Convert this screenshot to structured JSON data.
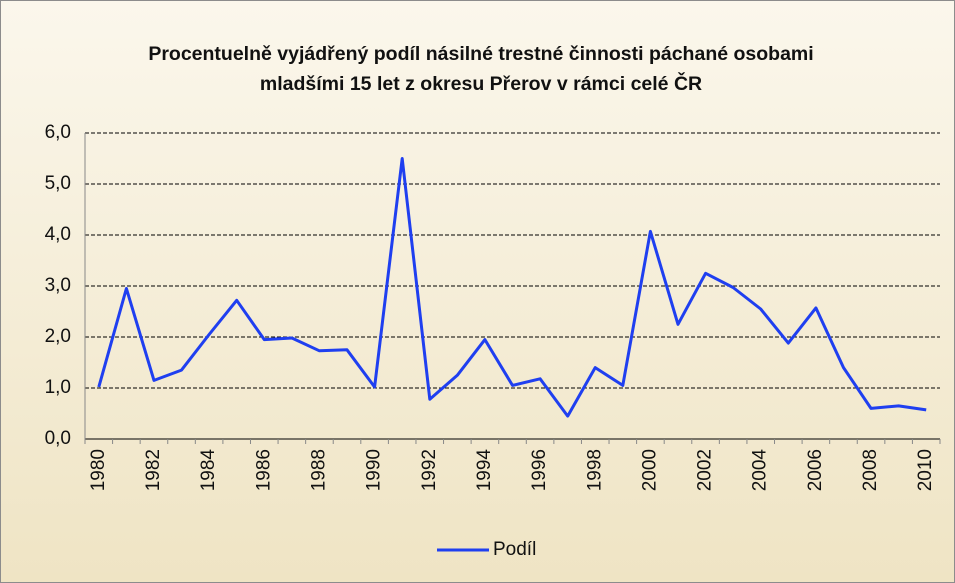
{
  "chart_data": {
    "type": "line",
    "title": "Procentuelně vyjádřený podíl násilné trestné činnosti páchané osobami mladšími 15 let z okresu Přerov v rámci celé ČR",
    "categories": [
      "1980",
      null,
      "1982",
      null,
      "1984",
      null,
      "1986",
      null,
      "1988",
      null,
      "1990",
      null,
      "1992",
      null,
      "1994",
      null,
      "1996",
      null,
      "1998",
      null,
      "2000",
      null,
      "2002",
      null,
      "2004",
      null,
      "2006",
      null,
      "2008",
      null,
      "2010"
    ],
    "series": [
      {
        "name": "Podíl",
        "color": "#1f3ff0",
        "values": [
          1.02,
          2.95,
          1.15,
          1.35,
          2.05,
          2.72,
          1.95,
          1.98,
          1.73,
          1.75,
          1.02,
          5.5,
          0.78,
          1.25,
          1.95,
          1.05,
          1.18,
          0.45,
          1.4,
          1.05,
          4.07,
          2.25,
          3.25,
          2.97,
          2.55,
          1.88,
          2.57,
          1.4,
          0.6,
          0.65,
          0.57
        ]
      }
    ],
    "ylim": [
      0,
      6
    ],
    "yticks": [
      {
        "value": 0,
        "label": "0,0"
      },
      {
        "value": 1,
        "label": "1,0"
      },
      {
        "value": 2,
        "label": "2,0"
      },
      {
        "value": 3,
        "label": "3,0"
      },
      {
        "value": 4,
        "label": "4,0"
      },
      {
        "value": 5,
        "label": "5,0"
      },
      {
        "value": 6,
        "label": "6,0"
      }
    ],
    "grid": true,
    "legend": "bottom"
  }
}
